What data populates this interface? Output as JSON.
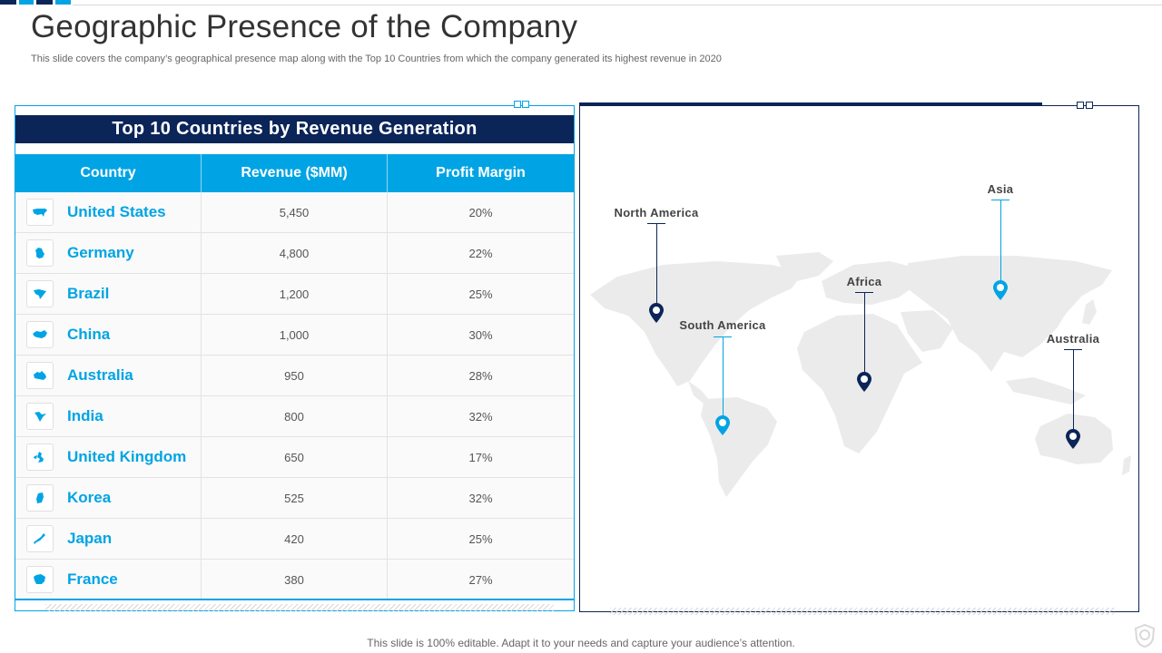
{
  "page": {
    "title": "Geographic Presence of the Company",
    "subtitle": "This slide covers the company’s geographical presence map along with the Top 10 Countries from which the company generated its highest revenue in 2020",
    "footer": "This slide is 100% editable. Adapt it to your needs and capture your audience’s attention."
  },
  "colors": {
    "navy": "#0b2559",
    "accent": "#00a4e4",
    "map_land": "#ebebeb"
  },
  "table": {
    "title": "Top 10 Countries by Revenue Generation",
    "headers": [
      "Country",
      "Revenue ($MM)",
      "Profit Margin"
    ],
    "rows": [
      {
        "country": "United States",
        "revenue": "5,450",
        "margin": "20%",
        "icon": "usa-map-icon"
      },
      {
        "country": "Germany",
        "revenue": "4,800",
        "margin": "22%",
        "icon": "germany-map-icon"
      },
      {
        "country": "Brazil",
        "revenue": "1,200",
        "margin": "25%",
        "icon": "brazil-map-icon"
      },
      {
        "country": "China",
        "revenue": "1,000",
        "margin": "30%",
        "icon": "china-map-icon"
      },
      {
        "country": "Australia",
        "revenue": "950",
        "margin": "28%",
        "icon": "australia-map-icon"
      },
      {
        "country": "India",
        "revenue": "800",
        "margin": "32%",
        "icon": "india-map-icon"
      },
      {
        "country": "United Kingdom",
        "revenue": "650",
        "margin": "17%",
        "icon": "uk-map-icon"
      },
      {
        "country": "Korea",
        "revenue": "525",
        "margin": "32%",
        "icon": "korea-map-icon"
      },
      {
        "country": "Japan",
        "revenue": "420",
        "margin": "25%",
        "icon": "japan-map-icon"
      },
      {
        "country": "France",
        "revenue": "380",
        "margin": "27%",
        "icon": "france-map-icon"
      }
    ]
  },
  "map": {
    "regions": [
      {
        "label": "North America",
        "pin_color": "navy"
      },
      {
        "label": "South America",
        "pin_color": "accent"
      },
      {
        "label": "Africa",
        "pin_color": "navy"
      },
      {
        "label": "Asia",
        "pin_color": "accent"
      },
      {
        "label": "Australia",
        "pin_color": "navy"
      }
    ]
  }
}
